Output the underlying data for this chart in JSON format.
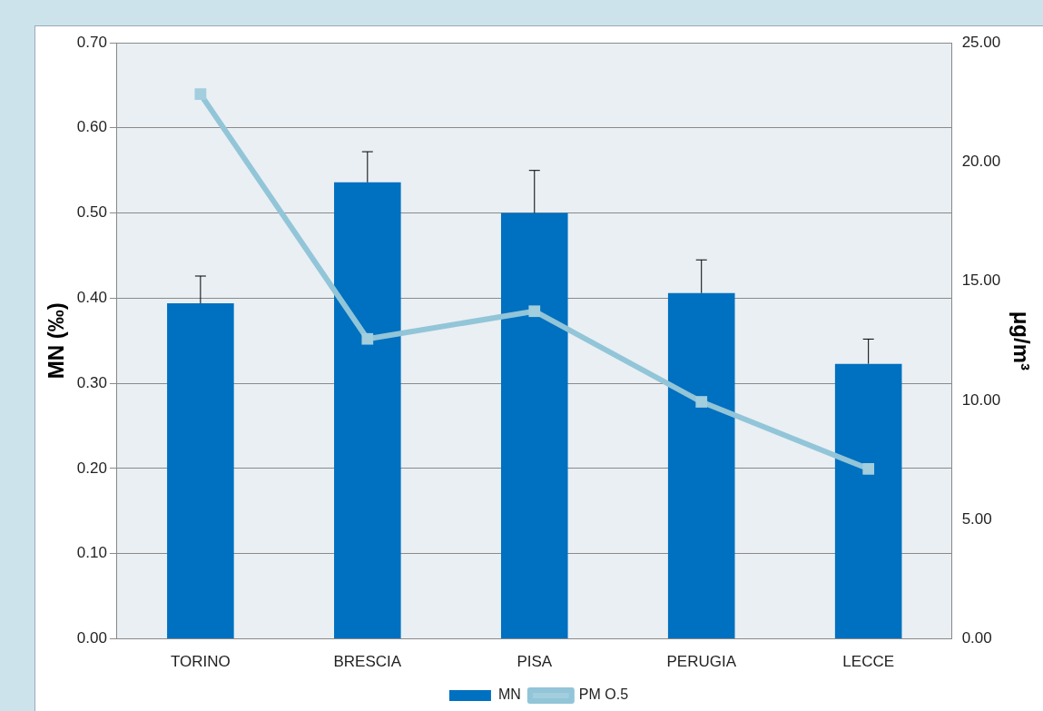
{
  "chart_data": {
    "type": "bar",
    "categories": [
      "TORINO",
      "BRESCIA",
      "PISA",
      "PERUGIA",
      "LECCE"
    ],
    "ylabel": "MN (‰)",
    "y2label": "μg/m³",
    "series": [
      {
        "name": "MN",
        "color": "#0070c0",
        "values": [
          0.394,
          0.536,
          0.5,
          0.406,
          0.323
        ],
        "errors": [
          [
            0.394,
            0.426
          ],
          [
            0.536,
            0.572
          ],
          [
            0.5,
            0.55
          ],
          [
            0.406,
            0.445
          ],
          [
            0.323,
            0.352
          ]
        ]
      },
      {
        "name": "PM O.5",
        "type": "line",
        "axis": "y2",
        "color": "#92c5d8",
        "values": [
          22.84,
          12.58,
          13.74,
          9.94,
          7.13
        ]
      }
    ],
    "ylim": [
      0,
      0.7
    ],
    "yticks": [
      {
        "value": 0,
        "label": "0.00"
      },
      {
        "value": 0.1,
        "label": "0.10"
      },
      {
        "value": 0.2,
        "label": "0.20"
      },
      {
        "value": 0.3,
        "label": "0.30"
      },
      {
        "value": 0.4,
        "label": "0.40"
      },
      {
        "value": 0.5,
        "label": "0.50"
      },
      {
        "value": 0.6,
        "label": "0.60"
      },
      {
        "value": 0.7,
        "label": "0.70"
      }
    ],
    "y2lim": [
      0,
      25
    ],
    "y2ticks": [
      {
        "value": 0,
        "label": "0.00"
      },
      {
        "value": 5,
        "label": "5.00"
      },
      {
        "value": 10,
        "label": "10.00"
      },
      {
        "value": 15,
        "label": "15.00"
      },
      {
        "value": 20,
        "label": "20.00"
      },
      {
        "value": 25,
        "label": "25.00"
      }
    ],
    "grid": "y",
    "legend": "bottom",
    "marker": "square",
    "line_style": "solid"
  }
}
